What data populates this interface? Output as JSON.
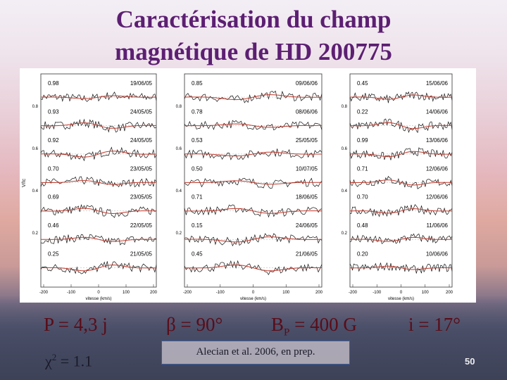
{
  "title": {
    "lines": [
      "Caractérisation du champ",
      "magnétique de HD 200775"
    ]
  },
  "figure": {
    "y_label": "V/Ic",
    "x_label": "vitesse (km/s)",
    "panels": [
      {
        "y_ticks": [
          "0.8",
          "0.6",
          "0.4",
          "0.2"
        ],
        "x_ticks": [
          "-200",
          "-100",
          "0",
          "100",
          "200"
        ],
        "rows": [
          {
            "phase": "0.98",
            "date": "19/06/05"
          },
          {
            "phase": "0.93",
            "date": "24/05/05"
          },
          {
            "phase": "0.92",
            "date": "24/05/05"
          },
          {
            "phase": "0.70",
            "date": "23/05/05"
          },
          {
            "phase": "0.69",
            "date": "23/05/05"
          },
          {
            "phase": "0.46",
            "date": "22/05/05"
          },
          {
            "phase": "0.25",
            "date": "21/05/05"
          }
        ]
      },
      {
        "y_ticks": [
          "0.8",
          "0.6",
          "0.4",
          "0.2"
        ],
        "x_ticks": [
          "-200",
          "-100",
          "0",
          "100",
          "200"
        ],
        "rows": [
          {
            "phase": "0.85",
            "date": "09/06/06"
          },
          {
            "phase": "0.78",
            "date": "08/06/06"
          },
          {
            "phase": "0.53",
            "date": "25/05/05"
          },
          {
            "phase": "0.50",
            "date": "10/07/05"
          },
          {
            "phase": "0.71",
            "date": "18/06/05"
          },
          {
            "phase": "0.15",
            "date": "24/06/05"
          },
          {
            "phase": "0.45",
            "date": "21/06/05"
          }
        ]
      },
      {
        "y_ticks": [
          "0.8",
          "0.6",
          "0.4",
          "0.2"
        ],
        "x_ticks": [
          "-200",
          "-100",
          "0",
          "100",
          "200"
        ],
        "rows": [
          {
            "phase": "0.45",
            "date": "15/06/06"
          },
          {
            "phase": "0.22",
            "date": "14/06/06"
          },
          {
            "phase": "0.99",
            "date": "13/06/06"
          },
          {
            "phase": "0.71",
            "date": "12/06/06"
          },
          {
            "phase": "0.70",
            "date": "12/06/06"
          },
          {
            "phase": "0.48",
            "date": "11/06/06"
          },
          {
            "phase": "0.20",
            "date": "10/06/06"
          }
        ]
      }
    ]
  },
  "parameters": {
    "period": "P = 4,3 j",
    "beta": "β = 90°",
    "polar_field": {
      "symbol": "B",
      "subscript": "P",
      "value": " = 400 G"
    },
    "inclination": "i = 17°",
    "chi2": {
      "symbol": "χ",
      "superscript": "2",
      "value": " = 1.1"
    }
  },
  "reference": "Alecian et al. 2006, en prep.",
  "page_number": "50"
}
